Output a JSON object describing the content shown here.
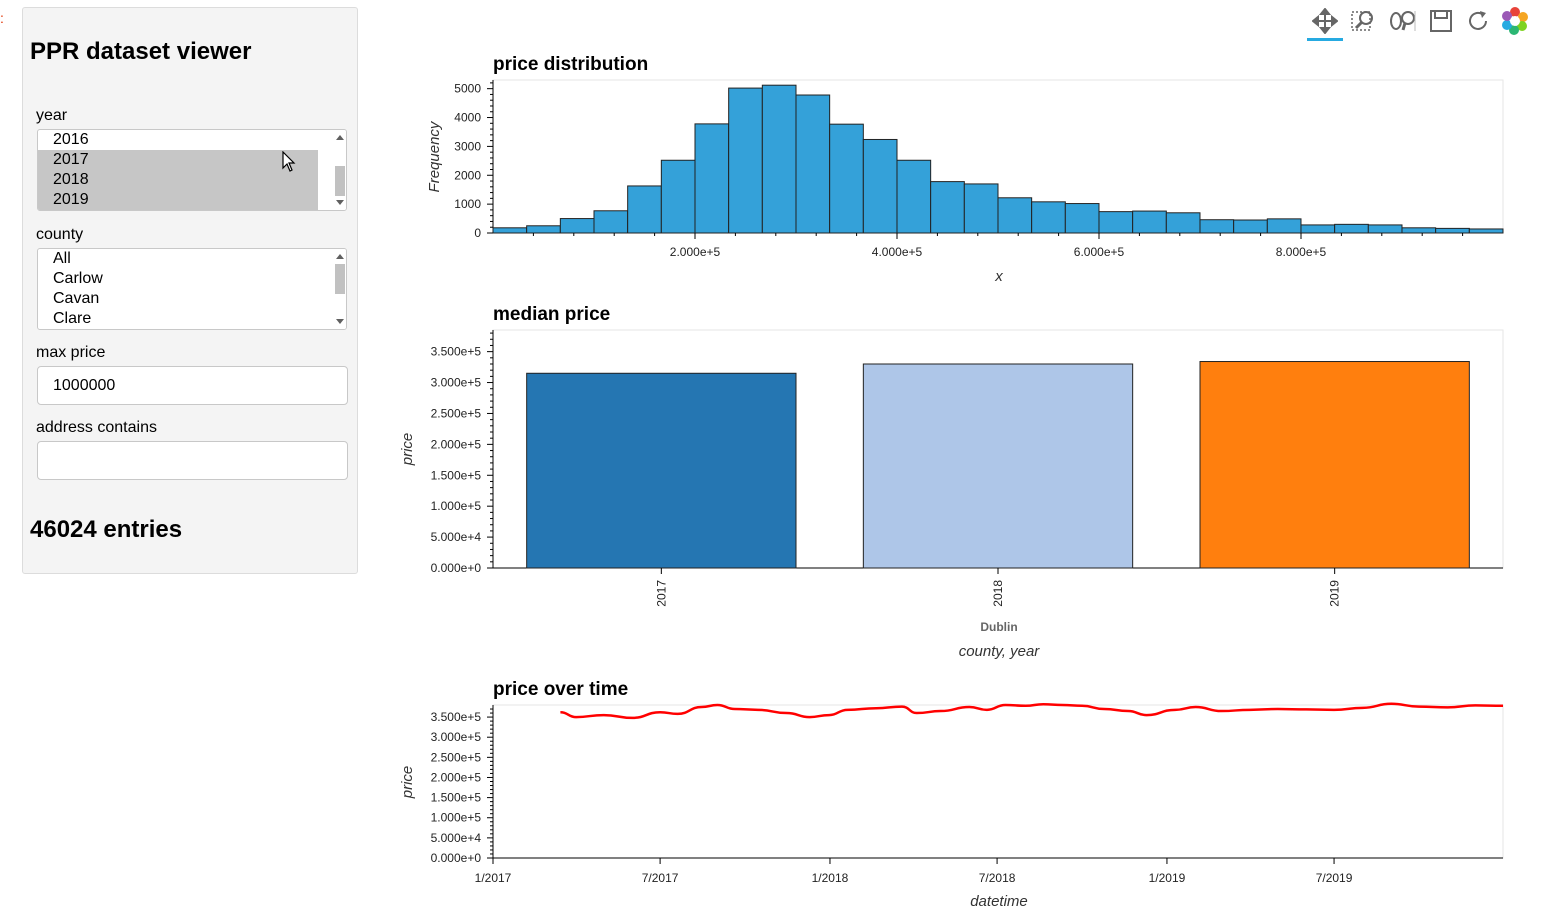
{
  "sidebar": {
    "title": "PPR dataset viewer",
    "year": {
      "label": "year",
      "options": [
        "2016",
        "2017",
        "2018",
        "2019"
      ],
      "selected": [
        "2017",
        "2018",
        "2019"
      ]
    },
    "county": {
      "label": "county",
      "options": [
        "All",
        "Carlow",
        "Cavan",
        "Clare"
      ]
    },
    "max_price": {
      "label": "max price",
      "value": "1000000"
    },
    "address": {
      "label": "address contains",
      "value": ""
    },
    "entries": "46024 entries"
  },
  "toolbar": {
    "tools": [
      "pan-icon",
      "box-zoom-icon",
      "wheel-zoom-icon",
      "save-icon",
      "reset-icon",
      "bokeh-logo-icon"
    ],
    "active": "pan-icon"
  },
  "colors": {
    "hist": "#34a1d9",
    "bar1": "#2576b2",
    "bar2": "#aec6e8",
    "bar3": "#ff7f0e",
    "line": "#ff0000"
  },
  "chart_data": [
    {
      "type": "bar",
      "title": "price distribution",
      "xlabel": "x",
      "ylabel": "Frequency",
      "xlim": [
        0,
        1000000
      ],
      "ylim": [
        0,
        5300
      ],
      "bin_width": 33333,
      "xticks": [
        "2.000e+5",
        "4.000e+5",
        "6.000e+5",
        "8.000e+5"
      ],
      "yticks": [
        "0",
        "1000",
        "2000",
        "3000",
        "4000",
        "5000"
      ],
      "values": [
        180,
        250,
        500,
        770,
        1630,
        2520,
        3780,
        5020,
        5120,
        4780,
        3770,
        3240,
        2520,
        1780,
        1700,
        1220,
        1080,
        1020,
        740,
        760,
        700,
        460,
        450,
        490,
        280,
        300,
        280,
        180,
        160,
        140
      ]
    },
    {
      "type": "bar",
      "title": "median price",
      "xlabel": "county, year",
      "ylabel": "price",
      "group_label": "Dublin",
      "categories": [
        "2017",
        "2018",
        "2019"
      ],
      "values": [
        315000,
        330000,
        334000
      ],
      "ylim": [
        0,
        385000
      ],
      "yticks": [
        "0.000e+0",
        "5.000e+4",
        "1.000e+5",
        "1.500e+5",
        "2.000e+5",
        "2.500e+5",
        "3.000e+5",
        "3.500e+5"
      ]
    },
    {
      "type": "line",
      "title": "price over time",
      "xlabel": "datetime",
      "ylabel": "price",
      "xlim": [
        "2017-01-01",
        "2019-12-31"
      ],
      "ylim": [
        0,
        380000
      ],
      "xticks": [
        "1/2017",
        "7/2017",
        "1/2018",
        "7/2018",
        "1/2019",
        "7/2019"
      ],
      "yticks": [
        "0.000e+0",
        "5.000e+4",
        "1.000e+5",
        "1.500e+5",
        "2.000e+5",
        "2.500e+5",
        "3.000e+5",
        "3.500e+5"
      ],
      "x": [
        "2017-03-15",
        "2017-04-01",
        "2017-05-01",
        "2017-06-01",
        "2017-07-01",
        "2017-07-20",
        "2017-08-15",
        "2017-09-01",
        "2017-09-20",
        "2017-10-15",
        "2017-11-15",
        "2017-12-10",
        "2017-12-31",
        "2018-01-20",
        "2018-02-20",
        "2018-03-20",
        "2018-04-05",
        "2018-05-01",
        "2018-06-01",
        "2018-06-20",
        "2018-07-10",
        "2018-08-01",
        "2018-08-20",
        "2018-09-10",
        "2018-10-01",
        "2018-10-25",
        "2018-11-20",
        "2018-12-10",
        "2019-01-10",
        "2019-02-01",
        "2019-03-01",
        "2019-04-01",
        "2019-05-01",
        "2019-06-01",
        "2019-07-01",
        "2019-08-01",
        "2019-09-01",
        "2019-10-01",
        "2019-11-01",
        "2019-12-01",
        "2019-12-31"
      ],
      "y": [
        362000,
        350000,
        355000,
        348000,
        362000,
        358000,
        375000,
        380000,
        370000,
        368000,
        360000,
        350000,
        355000,
        368000,
        372000,
        376000,
        360000,
        365000,
        375000,
        368000,
        380000,
        378000,
        382000,
        380000,
        378000,
        370000,
        365000,
        355000,
        368000,
        375000,
        365000,
        368000,
        370000,
        369000,
        368000,
        373000,
        383000,
        376000,
        374000,
        379000,
        378000
      ]
    }
  ]
}
